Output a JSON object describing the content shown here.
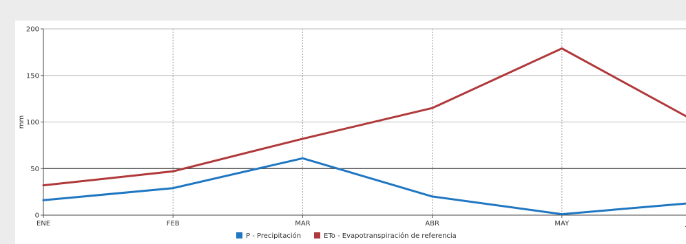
{
  "chart_data": {
    "type": "line",
    "title": "",
    "xlabel": "",
    "ylabel": "mm",
    "categories": [
      "ENE",
      "FEB",
      "MAR",
      "ABR",
      "MAY",
      "JUN"
    ],
    "ylim": [
      0,
      200
    ],
    "y_ticks": [
      "0",
      "50",
      "100",
      "150",
      "200"
    ],
    "reference_line": 50,
    "grid": true,
    "legend_position": "bottom",
    "series": [
      {
        "name": "P - Precipitación",
        "color": "#1f77c2",
        "values": [
          16,
          29,
          61,
          20,
          1,
          13
        ]
      },
      {
        "name": "ETo - Evapotranspiración de referencia",
        "color": "#b0393b",
        "values": [
          32,
          47,
          82,
          115,
          179,
          103
        ]
      }
    ]
  }
}
